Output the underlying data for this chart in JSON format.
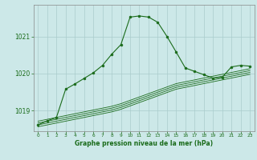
{
  "title": "Graphe pression niveau de la mer (hPa)",
  "bg_color": "#cce8e8",
  "grid_color": "#aacccc",
  "line_color": "#1a6b1a",
  "xlim": [
    -0.5,
    23.5
  ],
  "ylim": [
    1018.45,
    1021.85
  ],
  "yticks": [
    1019,
    1020,
    1021
  ],
  "xticks": [
    0,
    1,
    2,
    3,
    4,
    5,
    6,
    7,
    8,
    9,
    10,
    11,
    12,
    13,
    14,
    15,
    16,
    17,
    18,
    19,
    20,
    21,
    22,
    23
  ],
  "series1": {
    "x": [
      0,
      1,
      2,
      3,
      4,
      5,
      6,
      7,
      8,
      9,
      10,
      11,
      12,
      13,
      14,
      15,
      16,
      17,
      18,
      19,
      20,
      21,
      22,
      23
    ],
    "y": [
      1018.62,
      1018.73,
      1018.82,
      1019.58,
      1019.72,
      1019.87,
      1020.02,
      1020.22,
      1020.52,
      1020.78,
      1021.52,
      1021.55,
      1021.52,
      1021.38,
      1021.0,
      1020.58,
      1020.15,
      1020.06,
      1019.97,
      1019.88,
      1019.9,
      1020.18,
      1020.22,
      1020.2
    ]
  },
  "series2": {
    "x": [
      0,
      1,
      2,
      3,
      4,
      5,
      6,
      7,
      8,
      9,
      10,
      11,
      12,
      13,
      14,
      15,
      16,
      17,
      18,
      19,
      20,
      21,
      22,
      23
    ],
    "y": [
      1018.72,
      1018.77,
      1018.82,
      1018.87,
      1018.92,
      1018.97,
      1019.02,
      1019.07,
      1019.12,
      1019.19,
      1019.28,
      1019.37,
      1019.46,
      1019.55,
      1019.64,
      1019.73,
      1019.78,
      1019.83,
      1019.88,
      1019.93,
      1019.98,
      1020.03,
      1020.08,
      1020.13
    ]
  },
  "series3": {
    "x": [
      0,
      1,
      2,
      3,
      4,
      5,
      6,
      7,
      8,
      9,
      10,
      11,
      12,
      13,
      14,
      15,
      16,
      17,
      18,
      19,
      20,
      21,
      22,
      23
    ],
    "y": [
      1018.67,
      1018.72,
      1018.77,
      1018.82,
      1018.87,
      1018.92,
      1018.97,
      1019.02,
      1019.07,
      1019.14,
      1019.23,
      1019.32,
      1019.41,
      1019.5,
      1019.59,
      1019.68,
      1019.73,
      1019.78,
      1019.83,
      1019.88,
      1019.93,
      1019.98,
      1020.03,
      1020.08
    ]
  },
  "series4": {
    "x": [
      0,
      1,
      2,
      3,
      4,
      5,
      6,
      7,
      8,
      9,
      10,
      11,
      12,
      13,
      14,
      15,
      16,
      17,
      18,
      19,
      20,
      21,
      22,
      23
    ],
    "y": [
      1018.62,
      1018.67,
      1018.72,
      1018.77,
      1018.82,
      1018.87,
      1018.92,
      1018.97,
      1019.02,
      1019.09,
      1019.18,
      1019.27,
      1019.36,
      1019.45,
      1019.54,
      1019.63,
      1019.68,
      1019.73,
      1019.78,
      1019.83,
      1019.88,
      1019.93,
      1019.98,
      1020.03
    ]
  },
  "series5": {
    "x": [
      0,
      1,
      2,
      3,
      4,
      5,
      6,
      7,
      8,
      9,
      10,
      11,
      12,
      13,
      14,
      15,
      16,
      17,
      18,
      19,
      20,
      21,
      22,
      23
    ],
    "y": [
      1018.57,
      1018.62,
      1018.67,
      1018.72,
      1018.77,
      1018.82,
      1018.87,
      1018.92,
      1018.97,
      1019.04,
      1019.13,
      1019.22,
      1019.31,
      1019.4,
      1019.49,
      1019.58,
      1019.63,
      1019.68,
      1019.73,
      1019.78,
      1019.83,
      1019.88,
      1019.93,
      1019.98
    ]
  }
}
